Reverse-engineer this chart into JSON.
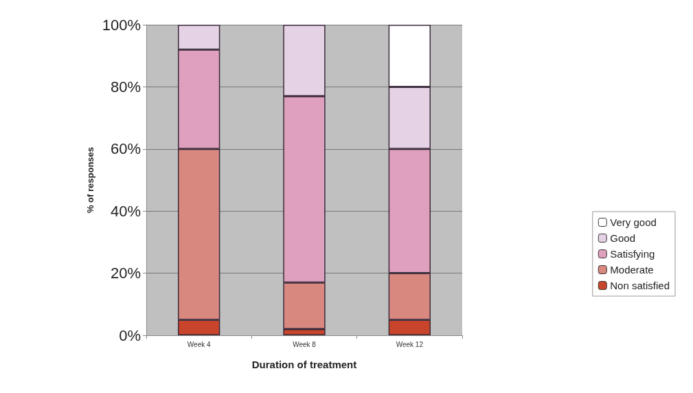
{
  "chart_data": {
    "type": "bar",
    "stacked": true,
    "xlabel": "Duration of treatment",
    "ylabel": "% of responses",
    "categories": [
      "Week 4",
      "Week 8",
      "Week 12"
    ],
    "series": [
      {
        "name": "Non satisfied",
        "color": "#c8452c",
        "values": [
          5,
          2,
          5
        ]
      },
      {
        "name": "Moderate",
        "color": "#d98880",
        "values": [
          55,
          15,
          15
        ]
      },
      {
        "name": "Satisfying",
        "color": "#dea0bd",
        "values": [
          32,
          60,
          40
        ]
      },
      {
        "name": "Good",
        "color": "#e5d2e4",
        "values": [
          8,
          23,
          20
        ]
      },
      {
        "name": "Very good",
        "color": "#ffffff",
        "values": [
          0,
          0,
          20
        ]
      }
    ],
    "ylim": [
      0,
      100
    ],
    "yticks": [
      {
        "value": 0,
        "label": "0%"
      },
      {
        "value": 20,
        "label": "20%"
      },
      {
        "value": 40,
        "label": "40%"
      },
      {
        "value": 60,
        "label": "60%"
      },
      {
        "value": 80,
        "label": "80%"
      },
      {
        "value": 100,
        "label": "100%"
      }
    ],
    "grid": "y",
    "legend": "right"
  }
}
